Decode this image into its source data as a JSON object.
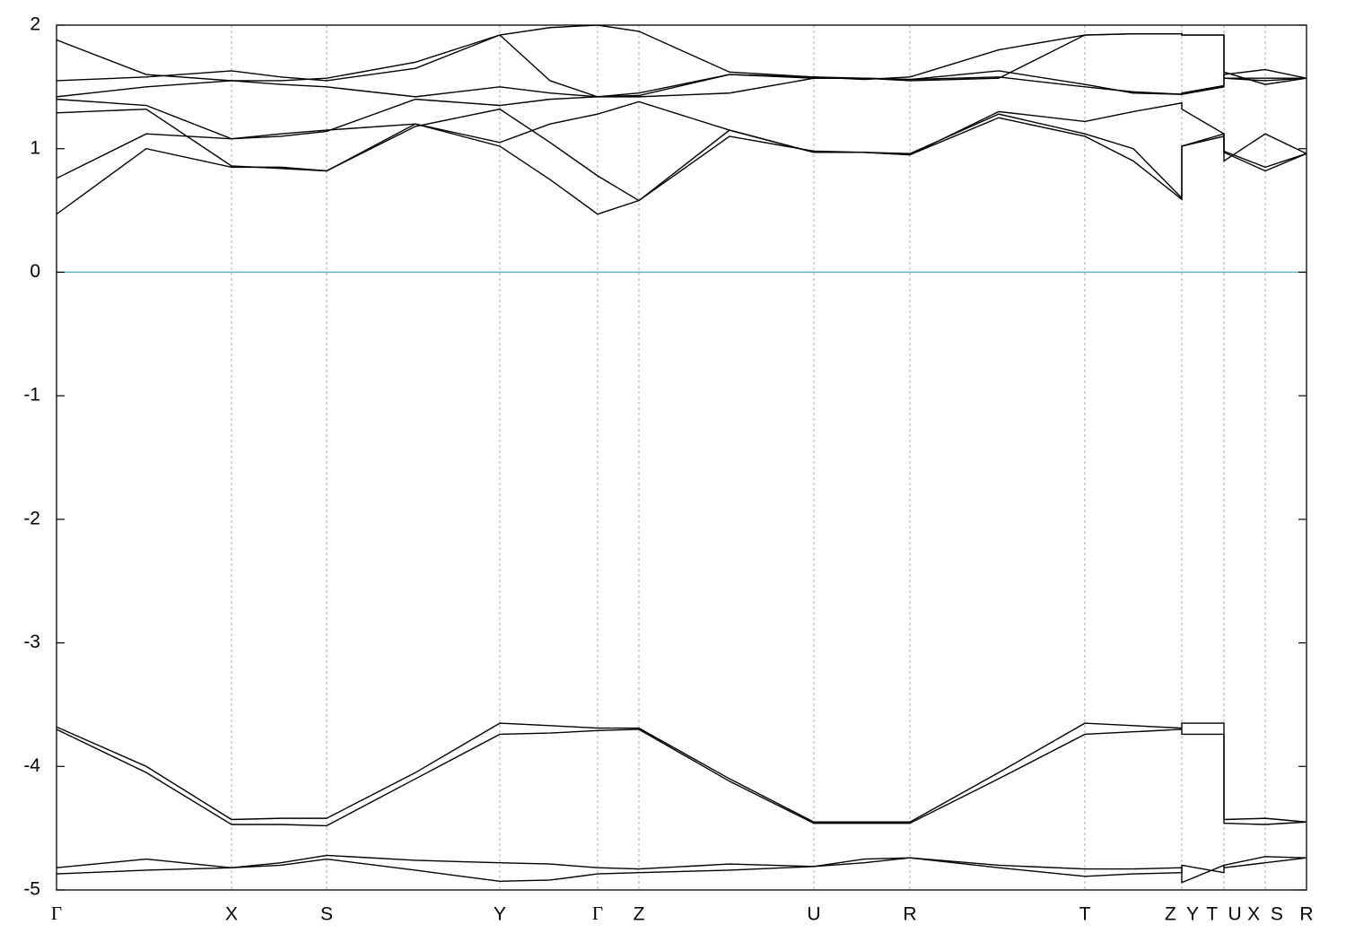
{
  "chart_data": {
    "type": "line",
    "x": [
      0,
      0.1,
      0.195,
      0.25,
      0.301,
      0.4,
      0.494,
      0.55,
      0.603,
      0.649,
      0.75,
      0.844,
      0.9,
      0.951,
      1.05,
      1.146,
      1.2,
      1.254,
      1.254,
      1.301,
      1.301,
      1.347,
      1.393
    ],
    "xlim": [
      0,
      1.393
    ],
    "ylim": [
      -5,
      2
    ],
    "yticks": [
      -5,
      -4,
      -3,
      -2,
      -1,
      0,
      1,
      2
    ],
    "xticks": [
      {
        "value": 0,
        "label": "Γ"
      },
      {
        "value": 0.195,
        "label": "X"
      },
      {
        "value": 0.301,
        "label": "S"
      },
      {
        "value": 0.494,
        "label": "Y"
      },
      {
        "value": 0.603,
        "label": "Γ"
      },
      {
        "value": 0.649,
        "label": "Z"
      },
      {
        "value": 0.844,
        "label": "U"
      },
      {
        "value": 0.951,
        "label": "R"
      },
      {
        "value": 1.146,
        "label": "T"
      },
      {
        "value": 1.254,
        "label": "Z  Y"
      },
      {
        "value": 1.301,
        "label": "T  U"
      },
      {
        "value": 1.347,
        "label": "X  S"
      },
      {
        "value": 1.393,
        "label": "R"
      }
    ],
    "grid": true,
    "reference_line": {
      "value": 0,
      "color": "#5fb4c8"
    },
    "series": [
      {
        "color": "#000000",
        "values": [
          -4.82,
          -4.75,
          -4.82,
          -4.78,
          -4.72,
          -4.76,
          -4.78,
          -4.79,
          -4.82,
          -4.83,
          -4.79,
          -4.81,
          -4.75,
          -4.74,
          -4.8,
          -4.83,
          -4.83,
          -4.82,
          -4.94,
          -4.8,
          -4.82,
          -4.78,
          -4.74
        ]
      },
      {
        "color": "#000000",
        "values": [
          -4.87,
          -4.84,
          -4.82,
          -4.8,
          -4.75,
          -4.84,
          -4.93,
          -4.92,
          -4.87,
          -4.86,
          -4.84,
          -4.81,
          -4.78,
          -4.74,
          -4.82,
          -4.89,
          -4.87,
          -4.86,
          -4.8,
          -4.86,
          -4.8,
          -4.73,
          -4.74
        ]
      },
      {
        "color": "#000000",
        "values": [
          -3.68,
          -4.0,
          -4.43,
          -4.42,
          -4.42,
          -4.05,
          -3.65,
          -3.67,
          -3.69,
          -3.69,
          -4.1,
          -4.45,
          -4.45,
          -4.45,
          -4.05,
          -3.65,
          -3.67,
          -3.69,
          -3.65,
          -3.65,
          -4.43,
          -4.42,
          -4.45
        ]
      },
      {
        "color": "#000000",
        "values": [
          -3.7,
          -4.05,
          -4.47,
          -4.47,
          -4.48,
          -4.1,
          -3.74,
          -3.73,
          -3.71,
          -3.7,
          -4.12,
          -4.46,
          -4.46,
          -4.46,
          -4.1,
          -3.74,
          -3.72,
          -3.7,
          -3.74,
          -3.74,
          -4.46,
          -4.47,
          -4.45
        ]
      },
      {
        "color": "#000000",
        "values": [
          0.47,
          1.0,
          0.85,
          0.85,
          0.82,
          1.2,
          1.02,
          0.75,
          0.47,
          0.58,
          1.15,
          0.97,
          0.97,
          0.95,
          1.25,
          1.1,
          0.9,
          0.59,
          1.02,
          1.12,
          0.97,
          0.82,
          0.96
        ]
      },
      {
        "color": "#000000",
        "values": [
          0.76,
          1.12,
          1.08,
          1.12,
          1.15,
          1.2,
          1.05,
          1.2,
          1.28,
          1.38,
          1.15,
          0.97,
          0.97,
          0.95,
          1.3,
          1.22,
          1.3,
          1.37,
          1.32,
          1.12,
          0.9,
          1.12,
          0.96
        ]
      },
      {
        "color": "#000000",
        "values": [
          1.29,
          1.32,
          0.86,
          0.84,
          0.82,
          1.18,
          1.32,
          1.05,
          0.78,
          0.58,
          1.1,
          0.98,
          0.97,
          0.96,
          1.28,
          1.12,
          1.0,
          0.6,
          1.02,
          1.1,
          0.98,
          0.85,
          0.96
        ]
      },
      {
        "color": "#000000",
        "values": [
          1.4,
          1.35,
          1.08,
          1.1,
          1.14,
          1.4,
          1.35,
          1.4,
          1.42,
          1.42,
          1.45,
          1.57,
          1.57,
          1.56,
          1.63,
          1.52,
          1.45,
          1.44,
          1.45,
          1.51,
          1.6,
          1.64,
          1.57
        ]
      },
      {
        "color": "#000000",
        "values": [
          1.42,
          1.5,
          1.55,
          1.52,
          1.5,
          1.42,
          1.5,
          1.45,
          1.42,
          1.45,
          1.6,
          1.57,
          1.57,
          1.56,
          1.58,
          1.5,
          1.46,
          1.44,
          1.44,
          1.5,
          1.57,
          1.55,
          1.57
        ]
      },
      {
        "color": "#000000",
        "values": [
          1.55,
          1.58,
          1.63,
          1.58,
          1.55,
          1.65,
          1.92,
          1.55,
          1.42,
          1.43,
          1.6,
          1.58,
          1.57,
          1.55,
          1.57,
          1.92,
          1.93,
          1.93,
          1.92,
          1.92,
          1.57,
          1.57,
          1.57
        ]
      },
      {
        "color": "#000000",
        "values": [
          1.88,
          1.6,
          1.55,
          1.55,
          1.57,
          1.7,
          1.92,
          1.98,
          2.0,
          1.95,
          1.62,
          1.58,
          1.56,
          1.58,
          1.8,
          1.92,
          1.93,
          1.93,
          1.92,
          1.92,
          1.62,
          1.52,
          1.57
        ]
      }
    ]
  }
}
